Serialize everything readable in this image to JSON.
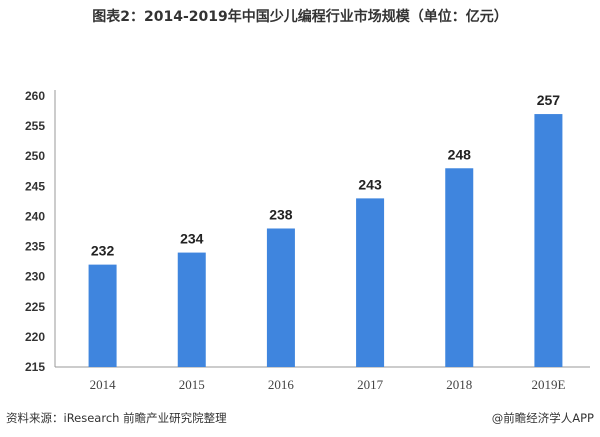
{
  "chart_data": {
    "type": "bar",
    "title": "图表2：2014-2019年中国少儿编程行业市场规模（单位：亿元）",
    "categories": [
      "2014",
      "2015",
      "2016",
      "2017",
      "2018",
      "2019E"
    ],
    "values": [
      232,
      234,
      238,
      243,
      248,
      257
    ],
    "ylim": [
      215,
      260
    ],
    "yticks": [
      215,
      220,
      225,
      230,
      235,
      240,
      245,
      250,
      255,
      260
    ],
    "xlabel": "",
    "ylabel": "",
    "grid": false,
    "bar_color": "#3f85de"
  },
  "footer": {
    "source": "资料来源：iResearch  前瞻产业研究院整理",
    "brand": "@前瞻经济学人APP"
  }
}
